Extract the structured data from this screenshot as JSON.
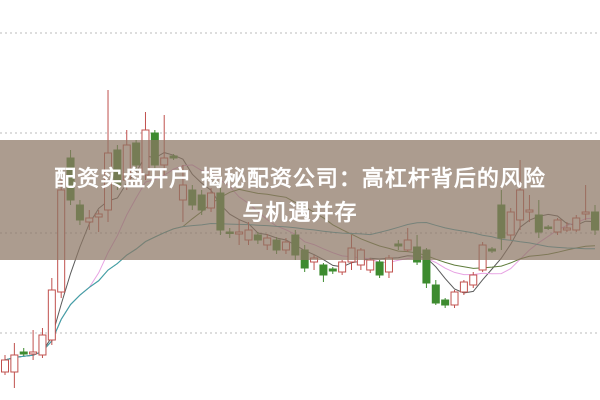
{
  "title": {
    "line1": "配资实盘开户 揭秘配资公司：高杠杆背后的风险",
    "line2": "与机遇并存"
  },
  "chart_data": {
    "type": "candlestick",
    "ylim": [
      0,
      400
    ],
    "grid": true,
    "gridlines": [
      367,
      267,
      167,
      67
    ],
    "colors": {
      "up": "#c0504d",
      "down": "#3d8b2f",
      "grid": "#bbbbbb",
      "banner": "#8c7664"
    },
    "moving_averages": [
      {
        "period": 5,
        "color": "#5a5a5a"
      },
      {
        "period": 10,
        "color": "#e7a3e3"
      },
      {
        "period": 20,
        "color": "#5f7d3c"
      },
      {
        "period": 40,
        "color": "#3fa3b3"
      }
    ],
    "candles_ochl": [
      [
        28,
        40,
        45,
        25
      ],
      [
        28,
        45,
        57,
        12
      ],
      [
        48,
        46,
        52,
        44
      ],
      [
        46,
        48,
        70,
        40
      ],
      [
        45,
        65,
        72,
        42
      ],
      [
        60,
        110,
        122,
        55
      ],
      [
        108,
        210,
        222,
        102
      ],
      [
        242,
        200,
        250,
        195
      ],
      [
        195,
        180,
        200,
        175
      ],
      [
        178,
        182,
        190,
        170
      ],
      [
        183,
        186,
        190,
        168
      ],
      [
        190,
        247,
        310,
        178
      ],
      [
        250,
        215,
        255,
        210
      ],
      [
        220,
        255,
        270,
        210
      ],
      [
        257,
        235,
        260,
        230
      ],
      [
        225,
        270,
        288,
        220
      ],
      [
        267,
        235,
        270,
        230
      ],
      [
        235,
        242,
        285,
        225
      ],
      [
        244,
        242,
        246,
        240
      ],
      [
        200,
        215,
        235,
        178
      ],
      [
        210,
        195,
        215,
        190
      ],
      [
        205,
        190,
        210,
        185
      ],
      [
        192,
        207,
        212,
        188
      ],
      [
        207,
        170,
        212,
        165
      ],
      [
        168,
        167,
        172,
        162
      ],
      [
        166,
        168,
        180,
        155
      ],
      [
        160,
        170,
        178,
        155
      ],
      [
        165,
        160,
        168,
        156
      ],
      [
        155,
        162,
        166,
        150
      ],
      [
        160,
        150,
        163,
        146
      ],
      [
        150,
        158,
        162,
        146
      ],
      [
        165,
        145,
        170,
        140
      ],
      [
        150,
        132,
        155,
        128
      ],
      [
        138,
        142,
        145,
        130
      ],
      [
        135,
        125,
        137,
        118
      ],
      [
        131,
        129,
        133,
        126
      ],
      [
        128,
        138,
        140,
        125
      ],
      [
        138,
        152,
        165,
        130
      ],
      [
        135,
        150,
        152,
        130
      ],
      [
        130,
        140,
        142,
        127
      ],
      [
        138,
        125,
        140,
        122
      ],
      [
        128,
        142,
        145,
        122
      ],
      [
        156,
        154,
        160,
        150
      ],
      [
        150,
        160,
        172,
        148
      ],
      [
        153,
        138,
        165,
        135
      ],
      [
        150,
        117,
        152,
        112
      ],
      [
        115,
        97,
        120,
        95
      ],
      [
        100,
        95,
        102,
        92
      ],
      [
        95,
        108,
        110,
        92
      ],
      [
        108,
        118,
        120,
        105
      ],
      [
        115,
        125,
        128,
        112
      ],
      [
        130,
        155,
        158,
        128
      ],
      [
        151,
        149,
        153,
        147
      ],
      [
        195,
        162,
        210,
        150
      ],
      [
        165,
        188,
        192,
        160
      ],
      [
        180,
        210,
        240,
        170
      ],
      [
        188,
        190,
        205,
        178
      ],
      [
        185,
        168,
        200,
        162
      ],
      [
        173,
        172,
        175,
        170
      ],
      [
        168,
        180,
        182,
        165
      ],
      [
        170,
        172,
        178,
        168
      ],
      [
        170,
        182,
        185,
        168
      ],
      [
        186,
        188,
        215,
        180
      ],
      [
        188,
        170,
        195,
        165
      ]
    ]
  }
}
